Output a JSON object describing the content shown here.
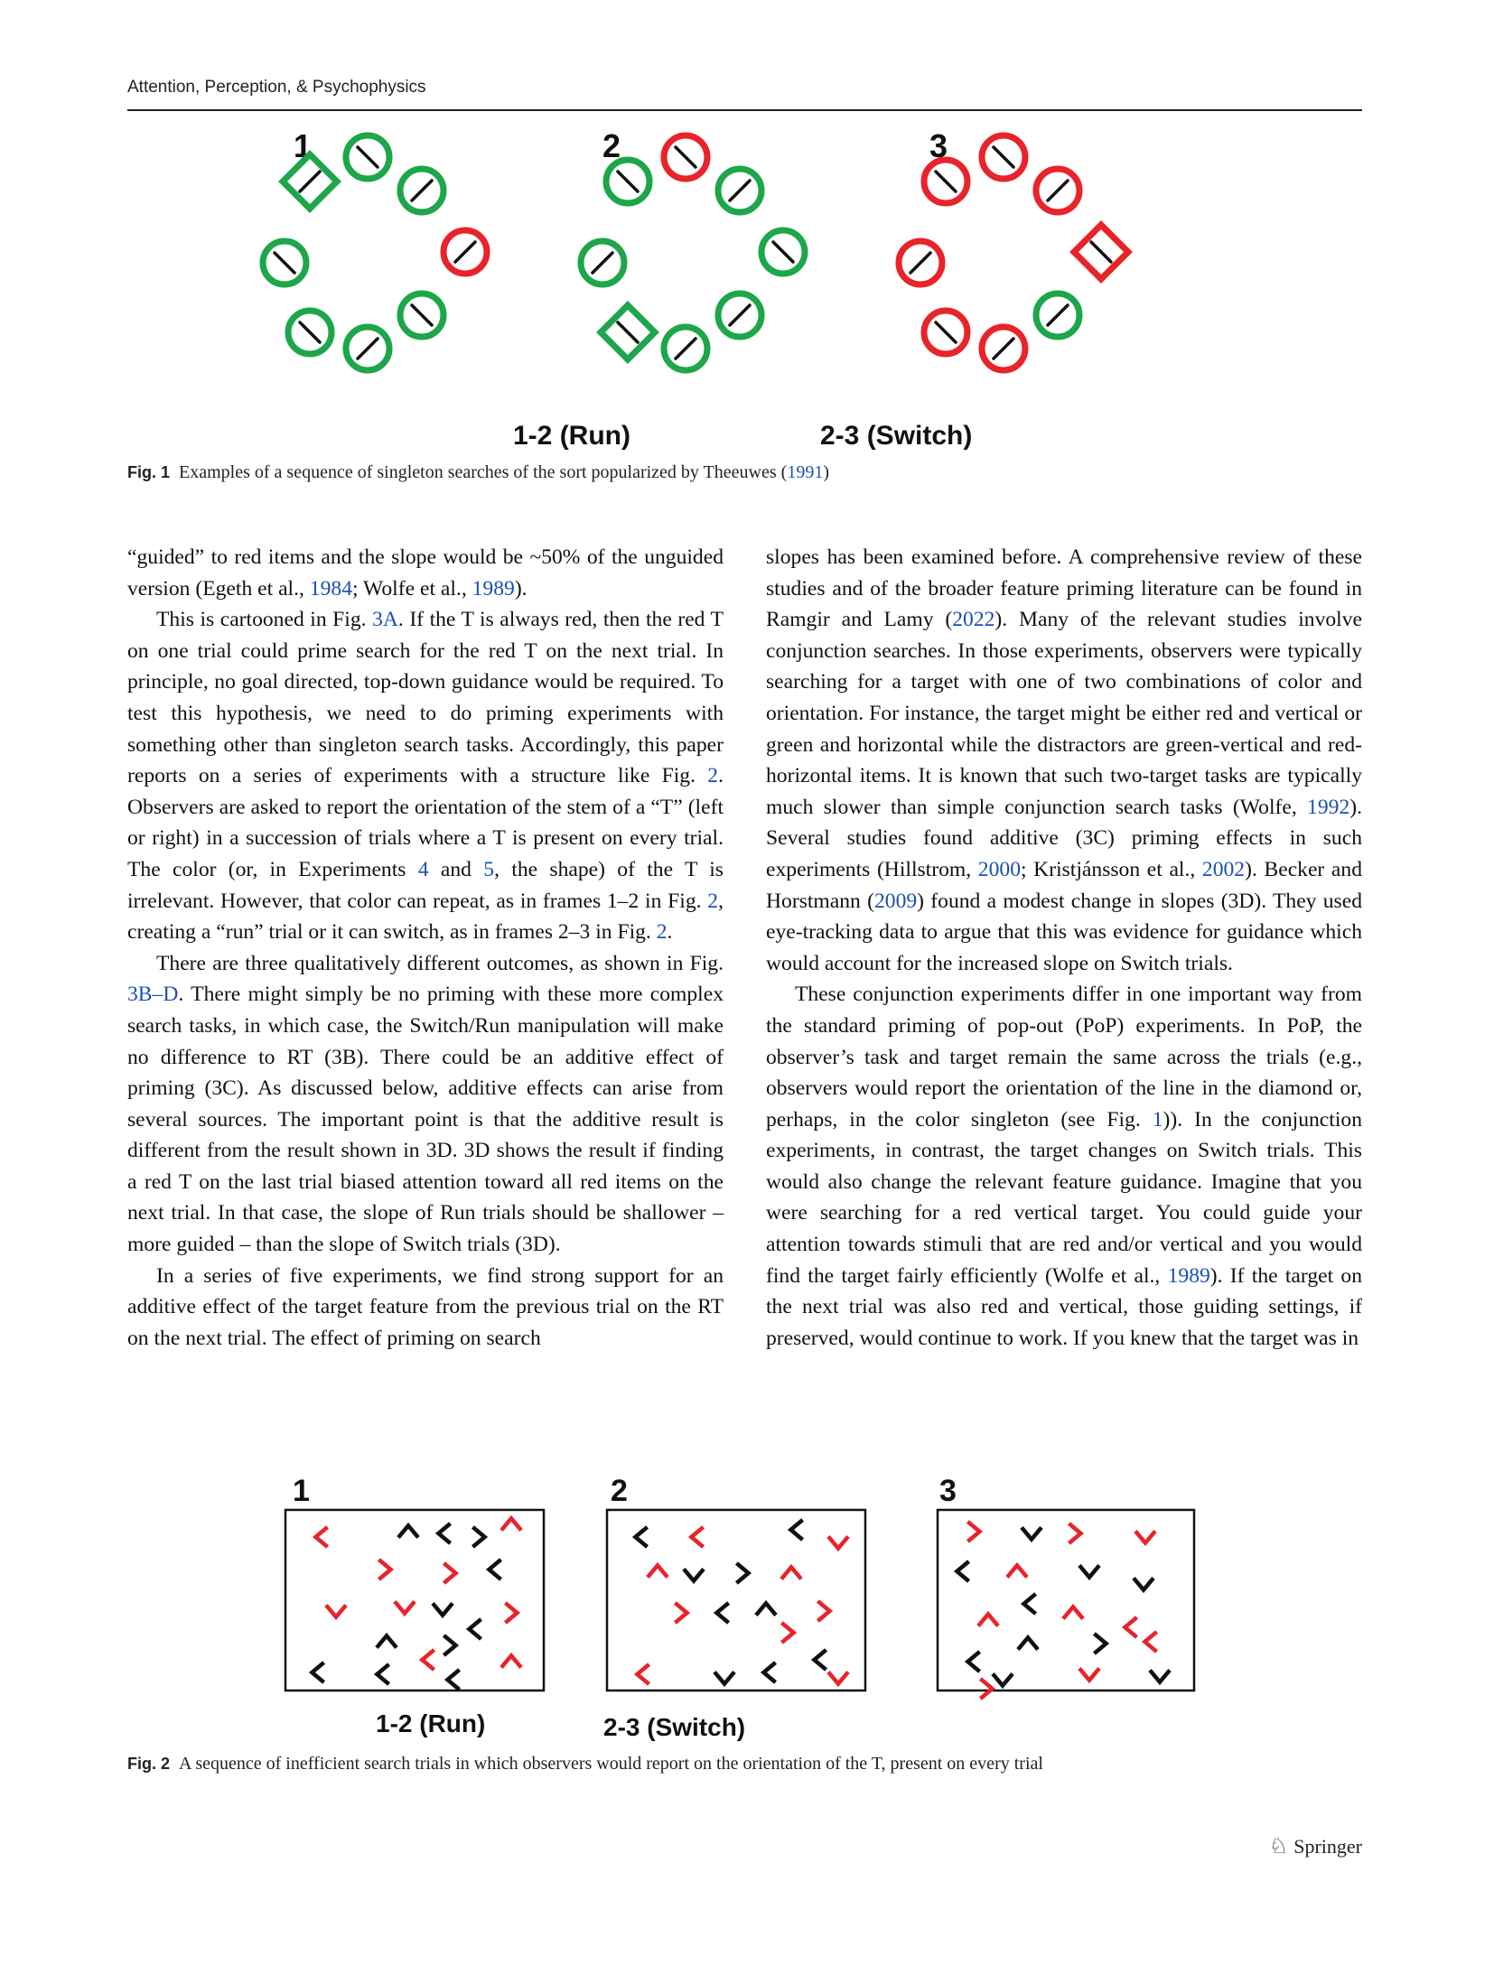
{
  "header": {
    "journal": "Attention, Perception, & Psychophysics"
  },
  "fig1": {
    "panel_labels": [
      "1",
      "2",
      "3"
    ],
    "transition_labels": [
      "1-2 (Run)",
      "2-3 (Switch)"
    ],
    "caption_label": "Fig. 1",
    "caption_text": "Examples of a sequence of singleton searches of the sort popularized by Theeuwes (",
    "caption_year": "1991",
    "caption_end": ")",
    "colors": {
      "green": "#1da64a",
      "red": "#e8232a",
      "line": "#111111"
    },
    "panels": [
      {
        "items": [
          {
            "shape": "diamond",
            "color": "green",
            "line": "/"
          },
          {
            "shape": "circle",
            "color": "green",
            "line": "\\"
          },
          {
            "shape": "circle",
            "color": "green",
            "line": "/"
          },
          {
            "shape": "circle",
            "color": "green",
            "line": "\\"
          },
          {
            "shape": "circle",
            "color": "red",
            "line": "/"
          },
          {
            "shape": "circle",
            "color": "green",
            "line": "\\"
          },
          {
            "shape": "circle",
            "color": "green",
            "line": "/"
          },
          {
            "shape": "circle",
            "color": "green",
            "line": "\\"
          }
        ]
      },
      {
        "items": [
          {
            "shape": "circle",
            "color": "green",
            "line": "\\"
          },
          {
            "shape": "circle",
            "color": "red",
            "line": "\\"
          },
          {
            "shape": "circle",
            "color": "green",
            "line": "/"
          },
          {
            "shape": "circle",
            "color": "green",
            "line": "/"
          },
          {
            "shape": "circle",
            "color": "green",
            "line": "\\"
          },
          {
            "shape": "diamond",
            "color": "green",
            "line": "\\"
          },
          {
            "shape": "circle",
            "color": "green",
            "line": "/"
          },
          {
            "shape": "circle",
            "color": "green",
            "line": "/"
          }
        ]
      },
      {
        "items": [
          {
            "shape": "circle",
            "color": "red",
            "line": "\\"
          },
          {
            "shape": "circle",
            "color": "red",
            "line": "\\"
          },
          {
            "shape": "circle",
            "color": "red",
            "line": "/"
          },
          {
            "shape": "circle",
            "color": "red",
            "line": "/"
          },
          {
            "shape": "diamond",
            "color": "red",
            "line": "\\"
          },
          {
            "shape": "circle",
            "color": "red",
            "line": "\\"
          },
          {
            "shape": "circle",
            "color": "red",
            "line": "/"
          },
          {
            "shape": "circle",
            "color": "green",
            "line": "/"
          }
        ]
      }
    ]
  },
  "fig2": {
    "panel_labels": [
      "1",
      "2",
      "3"
    ],
    "transition_labels": [
      "1-2 (Run)",
      "2-3 (Switch)"
    ],
    "caption_label": "Fig. 2",
    "caption_text": "A sequence of inefficient search trials in which observers would report on the orientation of the T, present on every trial",
    "colors": {
      "red": "#e8232a",
      "black": "#111111"
    },
    "panels": [
      {
        "items": [
          {
            "c": "red",
            "d": "left"
          },
          {
            "c": "black",
            "d": "up"
          },
          {
            "c": "black",
            "d": "left"
          },
          {
            "c": "black",
            "d": "right"
          },
          {
            "c": "red",
            "d": "up"
          },
          {
            "c": "red",
            "d": "right"
          },
          {
            "c": "red",
            "d": "right"
          },
          {
            "c": "black",
            "d": "left"
          },
          {
            "c": "red",
            "d": "down"
          },
          {
            "c": "red",
            "d": "down"
          },
          {
            "c": "black",
            "d": "down"
          },
          {
            "c": "red",
            "d": "right"
          },
          {
            "c": "black",
            "d": "up"
          },
          {
            "c": "black",
            "d": "right"
          },
          {
            "c": "black",
            "d": "left"
          },
          {
            "c": "red",
            "d": "left"
          },
          {
            "c": "red",
            "d": "up"
          },
          {
            "c": "black",
            "d": "left"
          },
          {
            "c": "black",
            "d": "left"
          },
          {
            "c": "black",
            "d": "left"
          }
        ]
      },
      {
        "items": [
          {
            "c": "black",
            "d": "left"
          },
          {
            "c": "red",
            "d": "left"
          },
          {
            "c": "black",
            "d": "left"
          },
          {
            "c": "red",
            "d": "down"
          },
          {
            "c": "red",
            "d": "up"
          },
          {
            "c": "black",
            "d": "down"
          },
          {
            "c": "black",
            "d": "right"
          },
          {
            "c": "red",
            "d": "up"
          },
          {
            "c": "red",
            "d": "right"
          },
          {
            "c": "black",
            "d": "left"
          },
          {
            "c": "black",
            "d": "up"
          },
          {
            "c": "red",
            "d": "right"
          },
          {
            "c": "red",
            "d": "right"
          },
          {
            "c": "black",
            "d": "left"
          },
          {
            "c": "red",
            "d": "left"
          },
          {
            "c": "black",
            "d": "down"
          },
          {
            "c": "black",
            "d": "left"
          },
          {
            "c": "red",
            "d": "down"
          }
        ]
      },
      {
        "items": [
          {
            "c": "red",
            "d": "right"
          },
          {
            "c": "black",
            "d": "down"
          },
          {
            "c": "red",
            "d": "right"
          },
          {
            "c": "red",
            "d": "down"
          },
          {
            "c": "black",
            "d": "left"
          },
          {
            "c": "red",
            "d": "up"
          },
          {
            "c": "black",
            "d": "down"
          },
          {
            "c": "black",
            "d": "down"
          },
          {
            "c": "black",
            "d": "left"
          },
          {
            "c": "red",
            "d": "up"
          },
          {
            "c": "red",
            "d": "up"
          },
          {
            "c": "black",
            "d": "up"
          },
          {
            "c": "red",
            "d": "left"
          },
          {
            "c": "black",
            "d": "left"
          },
          {
            "c": "black",
            "d": "right"
          },
          {
            "c": "red",
            "d": "left"
          },
          {
            "c": "red",
            "d": "right"
          },
          {
            "c": "black",
            "d": "down"
          },
          {
            "c": "red",
            "d": "down"
          },
          {
            "c": "black",
            "d": "down"
          }
        ]
      }
    ]
  },
  "left_column": [
    [
      {
        "t": "“guided” to red items and the slope would be ~50% of the unguided version (Egeth et al., "
      },
      {
        "t": "1984",
        "link": true
      },
      {
        "t": "; Wolfe et al., "
      },
      {
        "t": "1989",
        "link": true
      },
      {
        "t": ")."
      }
    ],
    [
      {
        "t": "This is cartooned in Fig. "
      },
      {
        "t": "3A",
        "link": true
      },
      {
        "t": ". If the T is always red, then the red T on one trial could prime search for the red T on the next trial. In principle, no goal directed, top-down guidance would be required. To test this hypothesis, we need to do priming experiments with something other than singleton search tasks. Accordingly, this paper reports on a series of experiments with a structure like Fig. "
      },
      {
        "t": "2",
        "link": true
      },
      {
        "t": ". Observers are asked to report the orientation of the stem of a “T” (left or right) in a succession of trials where a T is present on every trial. The color (or, in Experiments "
      },
      {
        "t": "4",
        "link": true
      },
      {
        "t": " and "
      },
      {
        "t": "5",
        "link": true
      },
      {
        "t": ", the shape) of the T is irrelevant. However, that color can repeat, as in frames 1–2 in Fig. "
      },
      {
        "t": "2",
        "link": true
      },
      {
        "t": ", creating a “run” trial or it can switch, as in frames 2–3 in Fig. "
      },
      {
        "t": "2",
        "link": true
      },
      {
        "t": "."
      }
    ],
    [
      {
        "t": "There are three qualitatively different outcomes, as shown in Fig. "
      },
      {
        "t": "3B–D",
        "link": true
      },
      {
        "t": ". There might simply be no priming with these more complex search tasks, in which case, the Switch/Run manipulation will make no difference to RT (3B). There could be an additive effect of priming (3C). As discussed below, additive effects can arise from several sources. The important point is that the additive result is different from the result shown in 3D. 3D shows the result if finding a red T on the last trial biased attention toward all red items on the next trial. In that case, the slope of Run trials should be shallower – more guided – than the slope of Switch trials (3D)."
      }
    ],
    [
      {
        "t": "In a series of five experiments, we find strong support for an additive effect of the target feature from the previous trial on the RT on the next trial. The effect of priming on search"
      }
    ]
  ],
  "right_column": [
    [
      {
        "t": "slopes has been examined before. A comprehensive review of these studies and of the broader feature priming literature can be found in Ramgir and Lamy ("
      },
      {
        "t": "2022",
        "link": true
      },
      {
        "t": "). Many of the relevant studies involve conjunction searches. In those experiments, observers were typically searching for a target with one of two combinations of color and orientation. For instance, the target might be either red and vertical or green and horizontal while the distractors are green-vertical and red-horizontal items. It is known that such two-target tasks are typically much slower than simple conjunction search tasks (Wolfe, "
      },
      {
        "t": "1992",
        "link": true
      },
      {
        "t": "). Several studies found additive (3C) priming effects in such experiments (Hillstrom, "
      },
      {
        "t": "2000",
        "link": true
      },
      {
        "t": "; Kristjánsson et al., "
      },
      {
        "t": "2002",
        "link": true
      },
      {
        "t": "). Becker and Horstmann ("
      },
      {
        "t": "2009",
        "link": true
      },
      {
        "t": ") found a modest change in slopes (3D). They used eye-tracking data to argue that this was evidence for guidance which would account for the increased slope on Switch trials."
      }
    ],
    [
      {
        "t": "These conjunction experiments differ in one important way from the standard priming of pop-out (PoP) experiments. In PoP, the observer’s task and target remain the same across the trials (e.g., observers would report the orientation of the line in the diamond or, perhaps, in the color singleton (see Fig. "
      },
      {
        "t": "1",
        "link": true
      },
      {
        "t": ")). In the conjunction experiments, in contrast, the target changes on Switch trials. This would also change the relevant feature guidance. Imagine that you were searching for a red vertical target. You could guide your attention towards stimuli that are red and/or vertical and you would find the target fairly efficiently (Wolfe et al., "
      },
      {
        "t": "1989",
        "link": true
      },
      {
        "t": "). If the target on the next trial was also red and vertical, those guiding settings, if preserved, would continue to work. If you knew that the target was in"
      }
    ]
  ],
  "footer": {
    "publisher": "Springer"
  }
}
